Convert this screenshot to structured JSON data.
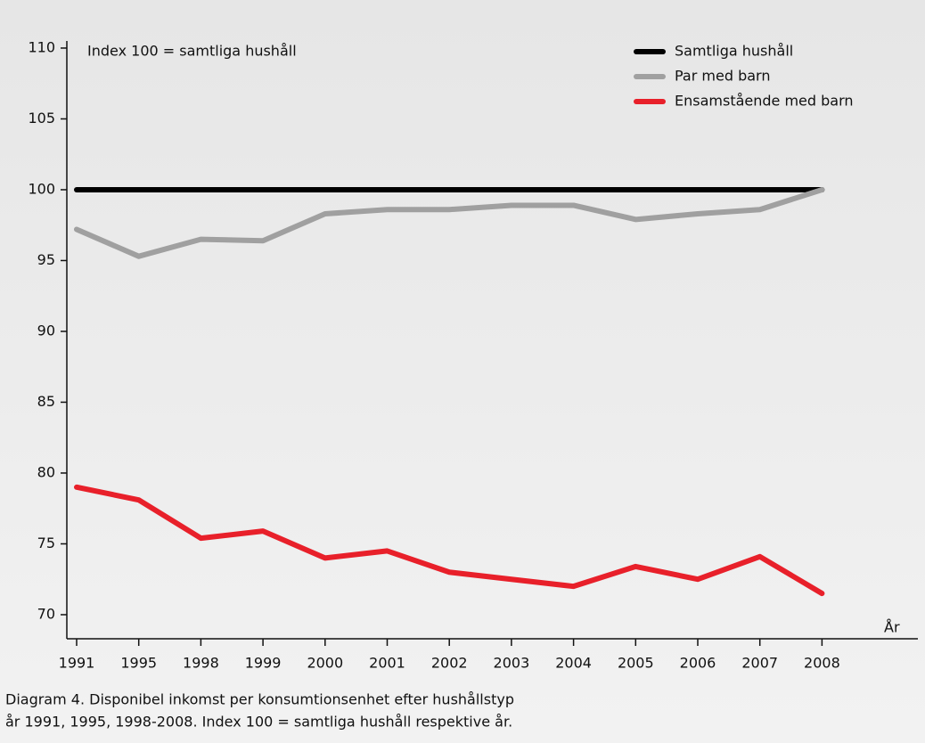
{
  "chart_data": {
    "type": "line",
    "annotation": "Index 100 = samtliga hushåll",
    "xlabel": "År",
    "caption": [
      "Diagram 4. Disponibel inkomst per konsumtionsenhet efter hushållstyp",
      "år 1991, 1995, 1998-2008. Index 100 = samtliga hushåll respektive år."
    ],
    "categories": [
      "1991",
      "1995",
      "1998",
      "1999",
      "2000",
      "2001",
      "2002",
      "2003",
      "2004",
      "2005",
      "2006",
      "2007",
      "2008"
    ],
    "series": [
      {
        "name": "Samtliga hushåll",
        "color": "#000000",
        "values": [
          100,
          100,
          100,
          100,
          100,
          100,
          100,
          100,
          100,
          100,
          100,
          100,
          100
        ]
      },
      {
        "name": "Par med barn",
        "color": "#a0a0a0",
        "values": [
          97.2,
          95.3,
          96.5,
          96.4,
          98.3,
          98.6,
          98.6,
          98.9,
          98.9,
          97.9,
          98.3,
          98.6,
          100
        ]
      },
      {
        "name": "Ensamstående med barn",
        "color": "#e8202a",
        "values": [
          79.0,
          78.1,
          75.4,
          75.9,
          74.0,
          74.5,
          73.0,
          72.5,
          72.0,
          73.4,
          72.5,
          74.1,
          71.5
        ]
      }
    ],
    "ylim": [
      68.3,
      110.5
    ],
    "yticks": [
      70,
      75,
      80,
      85,
      90,
      95,
      100,
      105,
      110
    ]
  }
}
